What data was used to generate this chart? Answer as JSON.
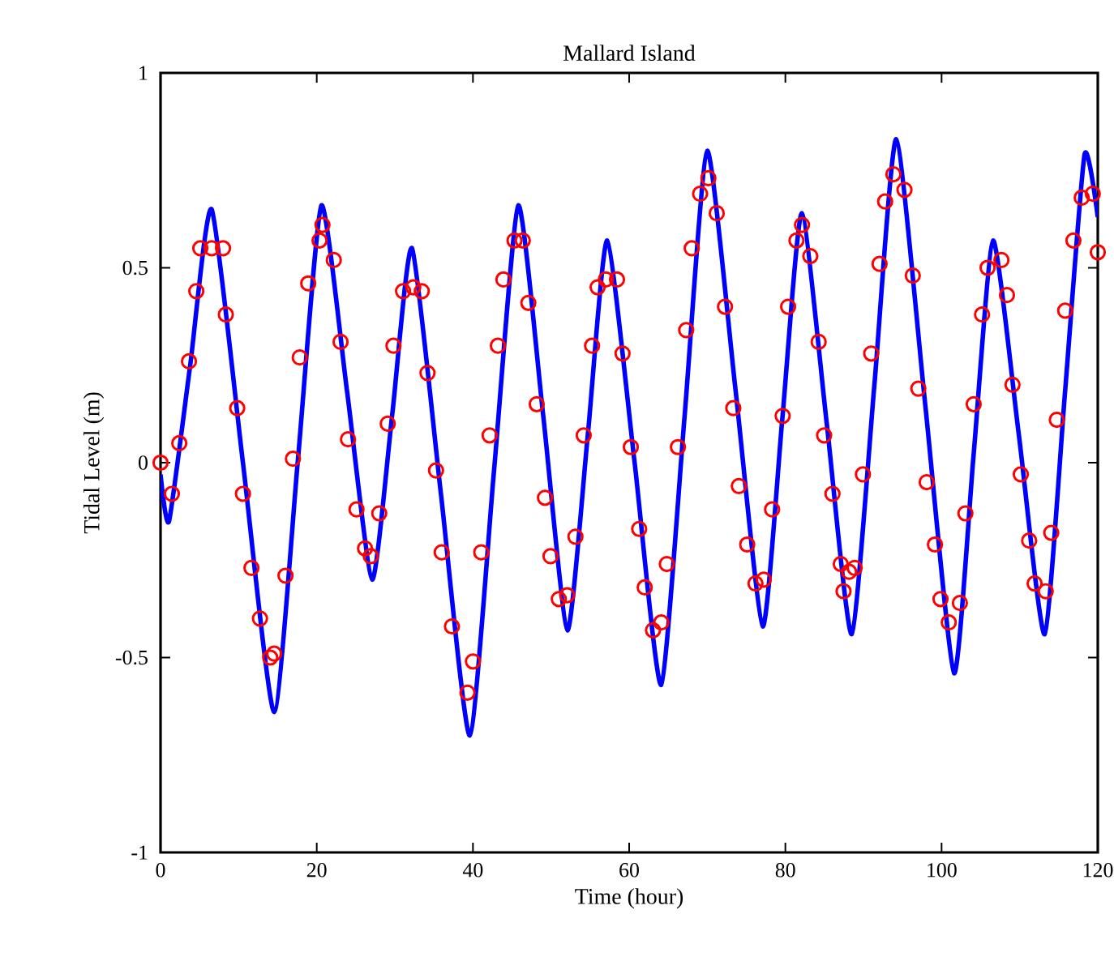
{
  "chart_data": {
    "type": "line",
    "title": "Mallard Island",
    "xlabel": "Time (hour)",
    "ylabel": "Tidal Level (m)",
    "xlim": [
      0,
      120
    ],
    "xticks": [
      0,
      20,
      40,
      60,
      80,
      100,
      120
    ],
    "ylim": [
      -1,
      1
    ],
    "yticks": [
      -1,
      -0.5,
      0,
      0.5,
      1
    ],
    "series": [
      {
        "color": "#0000ff",
        "marker": "none",
        "x": [
          0,
          1.09,
          3.8,
          6.55,
          10.55,
          14.55,
          17.6,
          20.6,
          23.9,
          27.1,
          29.7,
          32.2,
          35.9,
          39.6,
          42.7,
          45.8,
          49.0,
          52.1,
          54.7,
          57.2,
          60.7,
          64.1,
          67.1,
          70.0,
          73.6,
          77.1,
          79.6,
          82.1,
          85.3,
          88.5,
          91.4,
          94.2,
          97.9,
          101.6,
          104.1,
          106.6,
          109.9,
          113.2,
          115.8,
          118.3,
          120
        ],
        "values": [
          -0.03,
          -0.15,
          0.25,
          0.65,
          0.0,
          -0.64,
          0.01,
          0.66,
          0.18,
          -0.3,
          0.13,
          0.55,
          -0.08,
          -0.7,
          -0.02,
          0.66,
          0.12,
          -0.43,
          0.07,
          0.57,
          0.0,
          -0.57,
          0.12,
          0.8,
          0.19,
          -0.42,
          0.11,
          0.64,
          0.1,
          -0.44,
          0.2,
          0.83,
          0.15,
          -0.54,
          0.02,
          0.57,
          0.07,
          -0.44,
          0.18,
          0.79,
          0.63
        ]
      },
      {
        "type": "scatter",
        "color": "#ff0000",
        "marker": "circle",
        "x": [
          0,
          1.45,
          2.4,
          3.64,
          4.58,
          5.09,
          6.55,
          8.0,
          8.36,
          9.82,
          10.55,
          11.64,
          12.73,
          14.04,
          14.55,
          16.0,
          16.95,
          17.82,
          18.91,
          20.36,
          20.73,
          22.18,
          23.05,
          24.0,
          25.09,
          26.18,
          26.91,
          28.0,
          29.09,
          29.82,
          31.05,
          32.36,
          33.45,
          34.18,
          35.27,
          36.0,
          37.31,
          39.3,
          40.0,
          41.06,
          42.13,
          43.19,
          43.9,
          45.32,
          46.38,
          47.09,
          48.16,
          49.22,
          49.93,
          50.99,
          52.06,
          53.12,
          54.18,
          55.25,
          55.96,
          57.02,
          58.44,
          59.15,
          60.21,
          61.28,
          61.99,
          63.05,
          64.11,
          64.82,
          66.24,
          67.3,
          68.01,
          69.08,
          70.14,
          71.21,
          72.27,
          73.33,
          74.04,
          75.11,
          76.17,
          77.23,
          78.3,
          79.65,
          80.35,
          81.42,
          82.13,
          83.19,
          84.26,
          84.96,
          86.03,
          87.09,
          87.45,
          88.16,
          88.87,
          89.93,
          90.99,
          92.06,
          92.77,
          93.83,
          95.25,
          96.31,
          97.02,
          98.09,
          99.15,
          99.86,
          100.92,
          102.34,
          103.05,
          104.11,
          105.18,
          105.89,
          107.66,
          108.37,
          109.08,
          110.14,
          111.21,
          111.91,
          113.33,
          114.04,
          114.75,
          115.82,
          116.88,
          117.94,
          119.36,
          120
        ],
        "values": [
          0,
          -0.08,
          0.05,
          0.26,
          0.44,
          0.55,
          0.55,
          0.55,
          0.38,
          0.14,
          -0.08,
          -0.27,
          -0.4,
          -0.5,
          -0.49,
          -0.29,
          0.01,
          0.27,
          0.46,
          0.57,
          0.61,
          0.52,
          0.31,
          0.06,
          -0.12,
          -0.22,
          -0.24,
          -0.13,
          0.1,
          0.3,
          0.44,
          0.45,
          0.44,
          0.23,
          -0.02,
          -0.23,
          -0.42,
          -0.59,
          -0.51,
          -0.23,
          0.07,
          0.3,
          0.47,
          0.57,
          0.57,
          0.41,
          0.15,
          -0.09,
          -0.24,
          -0.35,
          -0.34,
          -0.19,
          0.07,
          0.3,
          0.45,
          0.47,
          0.47,
          0.28,
          0.04,
          -0.17,
          -0.32,
          -0.43,
          -0.41,
          -0.26,
          0.04,
          0.34,
          0.55,
          0.69,
          0.73,
          0.64,
          0.4,
          0.14,
          -0.06,
          -0.21,
          -0.31,
          -0.3,
          -0.12,
          0.12,
          0.4,
          0.57,
          0.61,
          0.53,
          0.31,
          0.07,
          -0.08,
          -0.26,
          -0.33,
          -0.28,
          -0.27,
          -0.03,
          0.28,
          0.51,
          0.67,
          0.74,
          0.7,
          0.48,
          0.19,
          -0.05,
          -0.21,
          -0.35,
          -0.41,
          -0.36,
          -0.13,
          0.15,
          0.38,
          0.5,
          0.52,
          0.43,
          0.2,
          -0.03,
          -0.2,
          -0.31,
          -0.33,
          -0.18,
          0.11,
          0.39,
          0.57,
          0.68,
          0.69,
          0.54
        ]
      }
    ]
  }
}
